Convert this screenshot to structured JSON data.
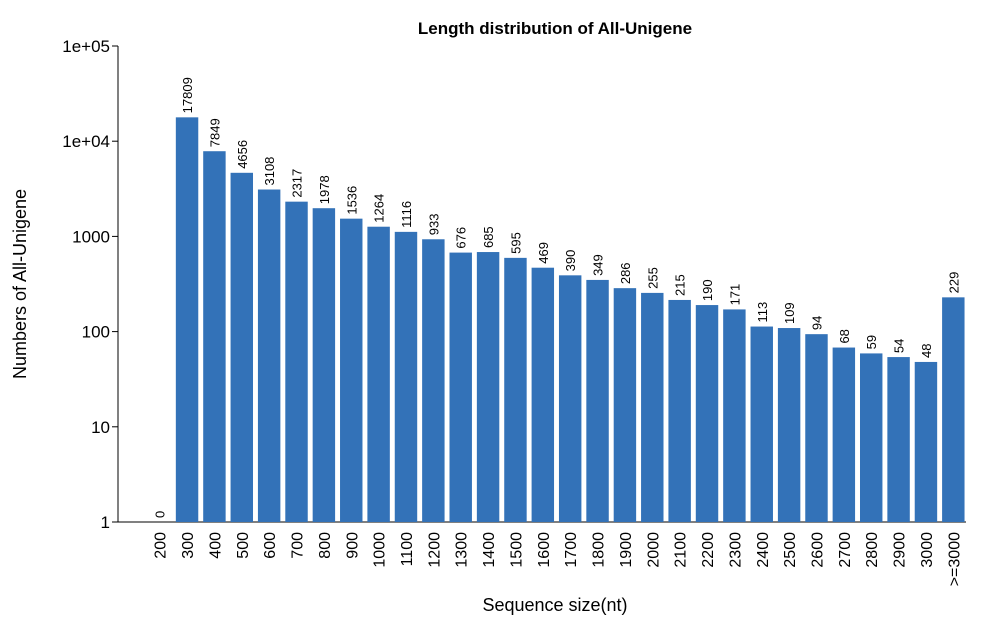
{
  "chart_data": {
    "type": "bar",
    "title": "Length distribution of All-Unigene",
    "x_label": "Sequence size(nt)",
    "y_label": "Numbers of All-Unigene",
    "categories": [
      "200",
      "300",
      "400",
      "500",
      "600",
      "700",
      "800",
      "900",
      "1000",
      "1100",
      "1200",
      "1300",
      "1400",
      "1500",
      "1600",
      "1700",
      "1800",
      "1900",
      "2000",
      "2100",
      "2200",
      "2300",
      "2400",
      "2500",
      "2600",
      "2700",
      "2800",
      "2900",
      "3000",
      ">=3000"
    ],
    "values": [
      0,
      17809,
      7849,
      4656,
      3108,
      2317,
      1978,
      1536,
      1264,
      1116,
      933,
      676,
      685,
      595,
      469,
      390,
      349,
      286,
      255,
      215,
      190,
      171,
      113,
      109,
      94,
      68,
      59,
      54,
      48,
      229
    ],
    "color": "#3372b8",
    "log_scale": true,
    "ylim": [
      1,
      100000
    ],
    "yticks": [
      1,
      10,
      100,
      1000,
      {
        "value": 10000,
        "label": "1e+04"
      },
      {
        "value": 100000,
        "label": "1e+05"
      }
    ]
  }
}
